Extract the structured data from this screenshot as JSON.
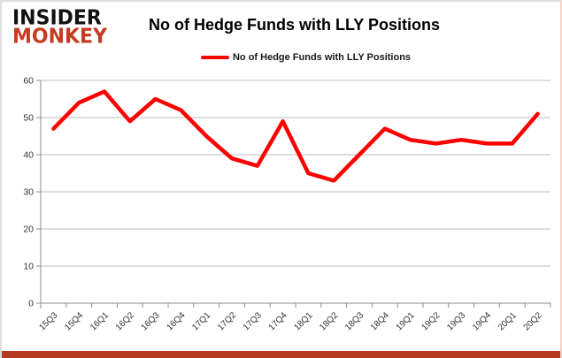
{
  "logo": {
    "line1": "INSIDER",
    "line2": "MONKEY"
  },
  "title": "No of Hedge Funds with LLY Positions",
  "legend": {
    "label": "No of Hedge Funds with LLY Positions"
  },
  "colors": {
    "line": "#ff0000",
    "grid": "#bdbdbd",
    "axis": "#8c8c8c",
    "tick_label": "#333333",
    "logo_black": "#111111",
    "logo_red": "#c43c22",
    "bottom_bar": "#b43a20"
  },
  "chart_data": {
    "type": "line",
    "title": "No of Hedge Funds with LLY Positions",
    "categories": [
      "15Q3",
      "15Q4",
      "16Q1",
      "16Q2",
      "16Q3",
      "16Q4",
      "17Q1",
      "17Q2",
      "17Q3",
      "17Q4",
      "18Q1",
      "18Q2",
      "18Q3",
      "18Q4",
      "19Q1",
      "19Q2",
      "19Q3",
      "19Q4",
      "20Q1",
      "20Q2"
    ],
    "series": [
      {
        "name": "No of Hedge Funds with LLY Positions",
        "color": "#ff0000",
        "values": [
          47,
          54,
          57,
          49,
          55,
          52,
          45,
          39,
          37,
          49,
          35,
          33,
          40,
          47,
          44,
          43,
          44,
          43,
          43,
          51
        ]
      }
    ],
    "xlabel": "",
    "ylabel": "",
    "ylim": [
      0,
      60
    ],
    "yticks": [
      0,
      10,
      20,
      30,
      40,
      50,
      60
    ],
    "grid": true,
    "legend_position": "top"
  }
}
